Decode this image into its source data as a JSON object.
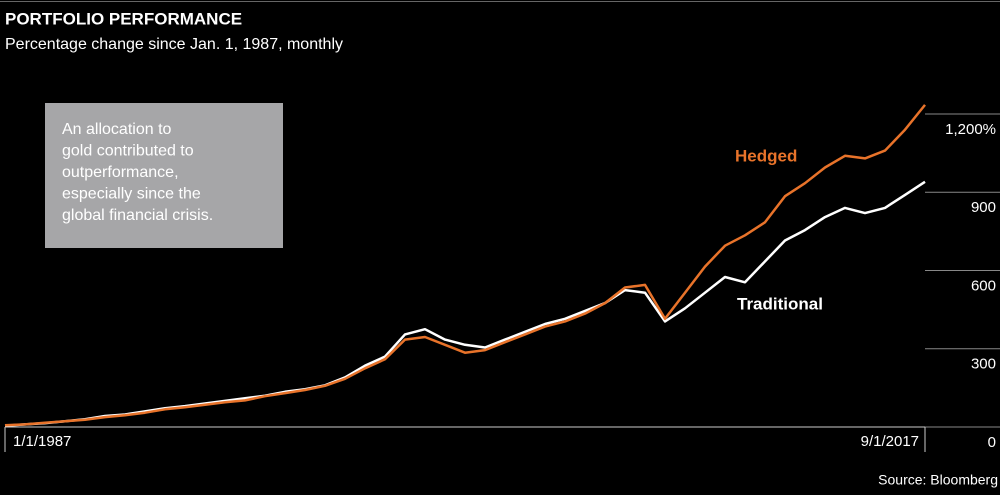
{
  "chart_data": {
    "type": "line",
    "title": "PORTFOLIO PERFORMANCE",
    "subtitle": "Percentage change since Jan. 1, 1987, monthly",
    "annotation": [
      "An allocation to",
      "gold contributed to",
      "outperformance,",
      "especially since the",
      "global financial crisis."
    ],
    "source": "Source: Bloomberg",
    "categories": [
      "1/1/1987",
      null,
      null,
      null,
      null,
      null,
      null,
      null,
      null,
      null,
      null,
      null,
      null,
      null,
      null,
      null,
      null,
      null,
      null,
      null,
      null,
      null,
      null,
      null,
      null,
      null,
      null,
      null,
      null,
      null,
      null,
      null,
      null,
      null,
      null,
      null,
      null,
      null,
      null,
      null,
      null,
      null,
      null,
      null,
      null,
      null,
      "9/1/2017"
    ],
    "series": [
      {
        "name": "Traditional",
        "color": "#ffffff",
        "values": [
          5,
          10,
          15,
          22,
          30,
          42,
          48,
          60,
          72,
          80,
          90,
          100,
          110,
          120,
          135,
          145,
          160,
          190,
          235,
          270,
          355,
          375,
          335,
          315,
          305,
          335,
          365,
          395,
          415,
          445,
          475,
          525,
          515,
          405,
          455,
          515,
          575,
          555,
          635,
          715,
          755,
          805,
          840,
          820,
          840,
          890,
          940
        ]
      },
      {
        "name": "Hedged",
        "color": "#e8732a",
        "values": [
          7,
          10,
          16,
          22,
          28,
          38,
          45,
          55,
          68,
          76,
          85,
          95,
          102,
          118,
          130,
          142,
          158,
          185,
          225,
          260,
          335,
          345,
          315,
          285,
          295,
          325,
          355,
          385,
          405,
          435,
          475,
          535,
          545,
          415,
          515,
          615,
          695,
          735,
          785,
          885,
          935,
          995,
          1040,
          1030,
          1060,
          1140,
          1235
        ]
      }
    ],
    "ylim": [
      0,
      1250
    ],
    "yticks": [
      0,
      300,
      600,
      900,
      {
        "value": 1200,
        "label": "1,200%"
      }
    ]
  }
}
